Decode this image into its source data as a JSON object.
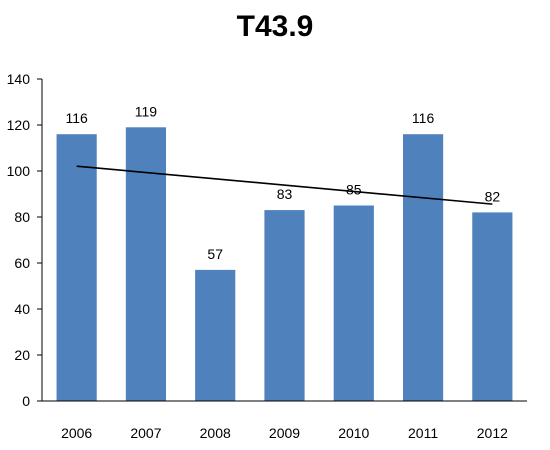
{
  "chart_data": {
    "type": "bar",
    "title": "T43.9",
    "categories": [
      "2006",
      "2007",
      "2008",
      "2009",
      "2010",
      "2011",
      "2012"
    ],
    "values": [
      116,
      119,
      57,
      83,
      85,
      116,
      82
    ],
    "ylim": [
      0,
      140
    ],
    "yticks": [
      0,
      20,
      40,
      60,
      80,
      100,
      120,
      140
    ],
    "grid": false,
    "legend": "none",
    "trendline": {
      "type": "linear",
      "from": 102.1,
      "to": 85.6
    },
    "colors": {
      "bar": "#4f81bd",
      "trendline": "#000000",
      "axis": "#000000"
    }
  }
}
